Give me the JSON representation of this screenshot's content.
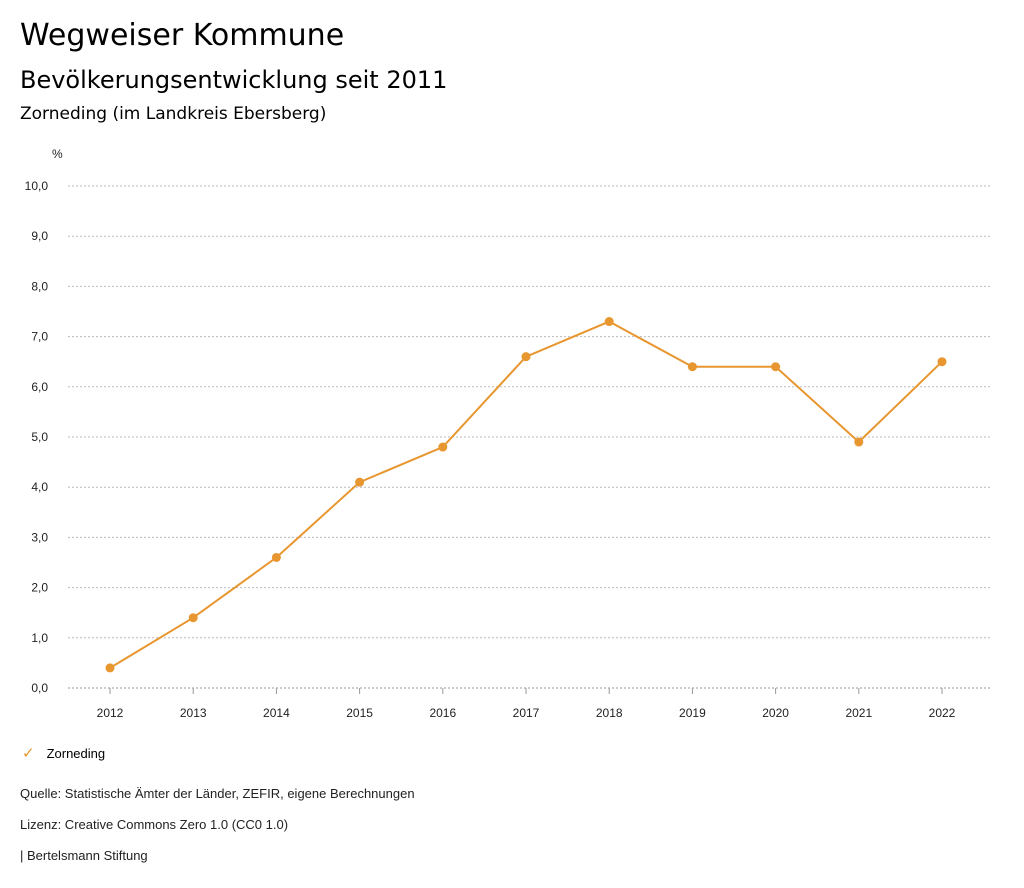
{
  "header": {
    "title": "Wegweiser Kommune",
    "subtitle": "Bevölkerungsentwicklung seit 2011",
    "region": "Zorneding (im Landkreis Ebersberg)"
  },
  "chart_data": {
    "type": "line",
    "title": "Bevölkerungsentwicklung seit 2011",
    "ylabel": "%",
    "xlabel": "",
    "ylim": [
      0,
      10
    ],
    "yticks": [
      "0,0",
      "1,0",
      "2,0",
      "3,0",
      "4,0",
      "5,0",
      "6,0",
      "7,0",
      "8,0",
      "9,0",
      "10,0"
    ],
    "categories": [
      "2012",
      "2013",
      "2014",
      "2015",
      "2016",
      "2017",
      "2018",
      "2019",
      "2020",
      "2021",
      "2022"
    ],
    "series": [
      {
        "name": "Zorneding",
        "color": "#e8962f",
        "values": [
          0.4,
          1.4,
          2.6,
          4.1,
          4.8,
          6.6,
          7.3,
          6.4,
          6.4,
          4.9,
          6.5
        ]
      }
    ],
    "grid": true,
    "legend_position": "bottom-left"
  },
  "legend": {
    "label": "Zorneding",
    "icon": "check-icon"
  },
  "footer": {
    "source": "Quelle: Statistische Ämter der Länder, ZEFIR, eigene Berechnungen",
    "license": "Lizenz: Creative Commons Zero 1.0 (CC0 1.0)",
    "publisher": "| Bertelsmann Stiftung"
  }
}
